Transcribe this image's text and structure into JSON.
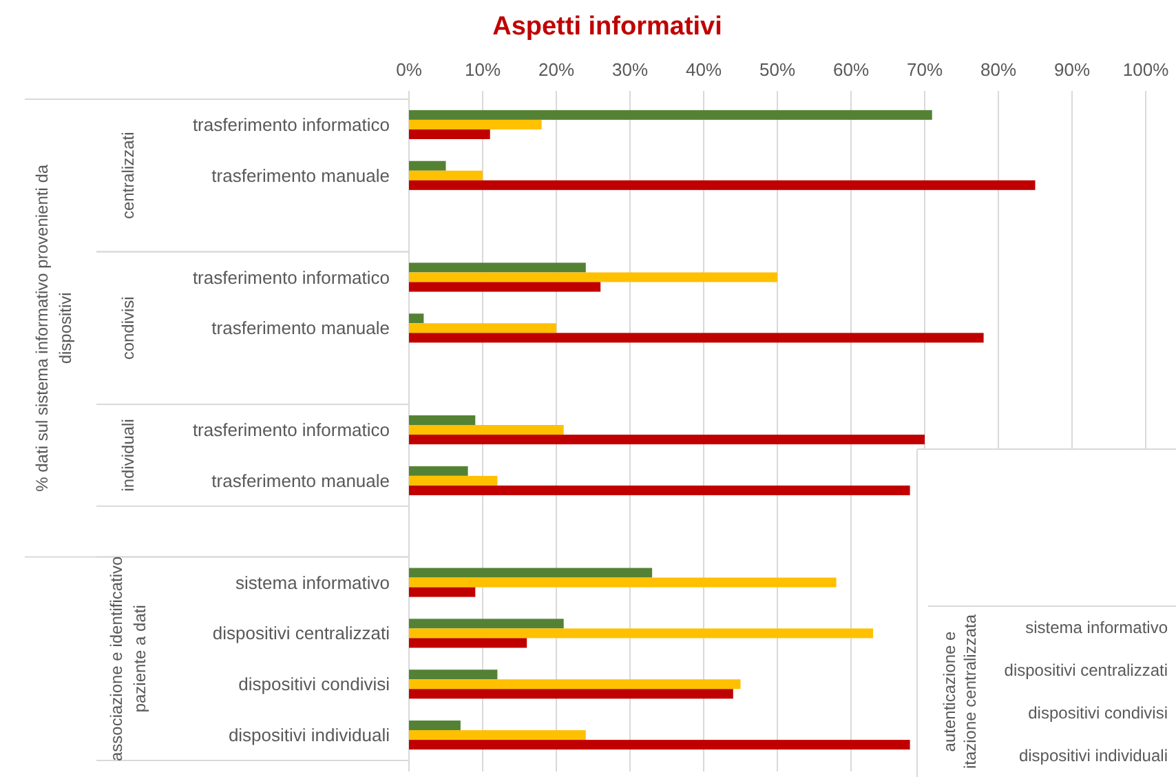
{
  "chart_data": [
    {
      "type": "bar",
      "orientation": "horizontal",
      "title": "Aspetti informativi",
      "categories": [
        "trasferimento informatico",
        "trasferimento manuale",
        null,
        "trasferimento informatico",
        "trasferimento manuale",
        null,
        "trasferimento informatico",
        "trasferimento manuale",
        null,
        "sistema informativo",
        "dispositivi centralizzati",
        "dispositivi condivisi",
        "dispositivi individuali"
      ],
      "series": [
        {
          "color": "#548235",
          "values": [
            71,
            5,
            null,
            24,
            2,
            null,
            9,
            8,
            null,
            33,
            21,
            12,
            7
          ]
        },
        {
          "color": "#ffc000",
          "values": [
            18,
            10,
            null,
            50,
            20,
            null,
            21,
            12,
            null,
            58,
            63,
            45,
            24
          ]
        },
        {
          "color": "#c00000",
          "values": [
            11,
            85,
            null,
            26,
            78,
            null,
            70,
            68,
            null,
            9,
            16,
            44,
            68
          ]
        }
      ],
      "xlim": [
        0,
        100
      ],
      "xticks": [
        {
          "value": 0,
          "label": "0%"
        },
        {
          "value": 10,
          "label": "10%"
        },
        {
          "value": 20,
          "label": "20%"
        },
        {
          "value": 30,
          "label": "30%"
        },
        {
          "value": 40,
          "label": "40%"
        },
        {
          "value": 50,
          "label": "50%"
        },
        {
          "value": 60,
          "label": "60%"
        },
        {
          "value": 70,
          "label": "70%"
        },
        {
          "value": 80,
          "label": "80%"
        },
        {
          "value": 90,
          "label": "90%"
        },
        {
          "value": 100,
          "label": "100%"
        }
      ],
      "grid": "x",
      "annotations": [
        "% dati sul sistema informativo provenienti da dispositivi",
        "centralizzati",
        "condivisi",
        "individuali",
        "associazione e identificativo paziente a dati"
      ]
    },
    {
      "type": "other",
      "ylabel": "autenticazione e\nitazione centralizzata",
      "categories": [
        "sistema informativo",
        "dispositivi centralizzati",
        "dispositivi condivisi",
        "dispositivi individuali"
      ]
    }
  ]
}
